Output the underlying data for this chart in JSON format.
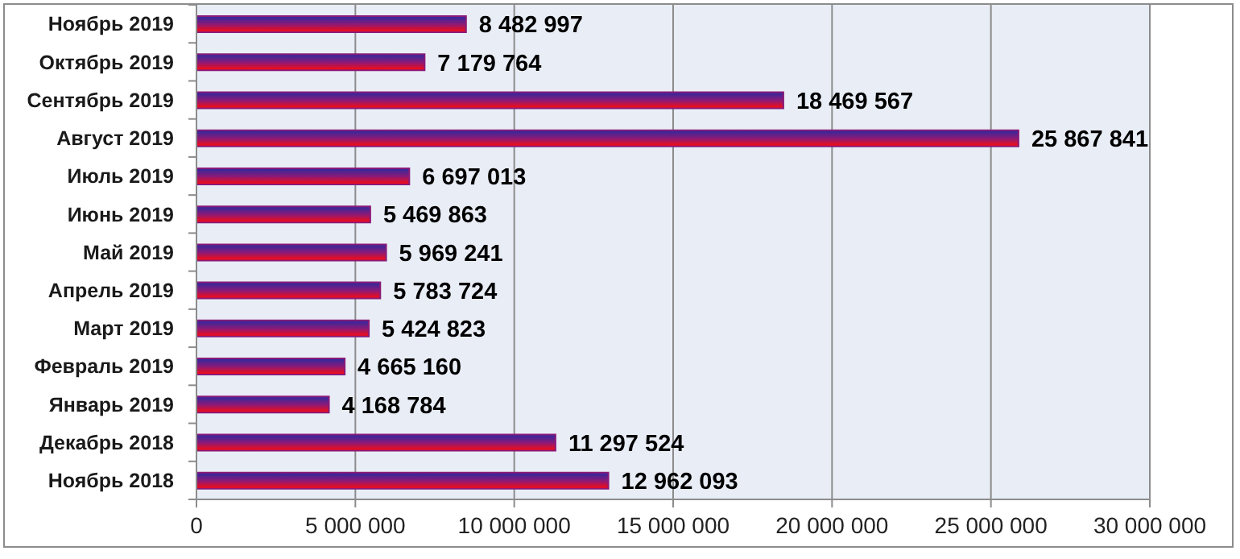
{
  "chart_data": {
    "type": "bar",
    "orientation": "horizontal",
    "categories": [
      "Ноябрь 2019",
      "Октябрь 2019",
      "Сентябрь 2019",
      "Август 2019",
      "Июль 2019",
      "Июнь 2019",
      "Май 2019",
      "Апрель 2019",
      "Март 2019",
      "Февраль 2019",
      "Январь 2019",
      "Декабрь 2018",
      "Ноябрь 2018"
    ],
    "values": [
      8482997,
      7179764,
      18469567,
      25867841,
      6697013,
      5469863,
      5969241,
      5783724,
      5424823,
      4665160,
      4168784,
      11297524,
      12962093
    ],
    "value_labels": [
      "8 482 997",
      "7 179 764",
      "18 469 567",
      "25 867 841",
      "6 697 013",
      "5 469 863",
      "5 969 241",
      "5 783 724",
      "5 424 823",
      "4 665 160",
      "4 168 784",
      "11 297 524",
      "12 962 093"
    ],
    "color": "#8a1a78",
    "xlim": [
      0,
      30000000
    ],
    "xticks": [
      0,
      {
        "value": 5000000,
        "label": "5 000 000"
      },
      {
        "value": 10000000,
        "label": "10 000 000"
      },
      {
        "value": 15000000,
        "label": "15 000 000"
      },
      {
        "value": 20000000,
        "label": "20 000 000"
      },
      {
        "value": 25000000,
        "label": "25 000 000"
      },
      {
        "value": 30000000,
        "label": "30 000 000"
      }
    ],
    "grid": "x"
  }
}
